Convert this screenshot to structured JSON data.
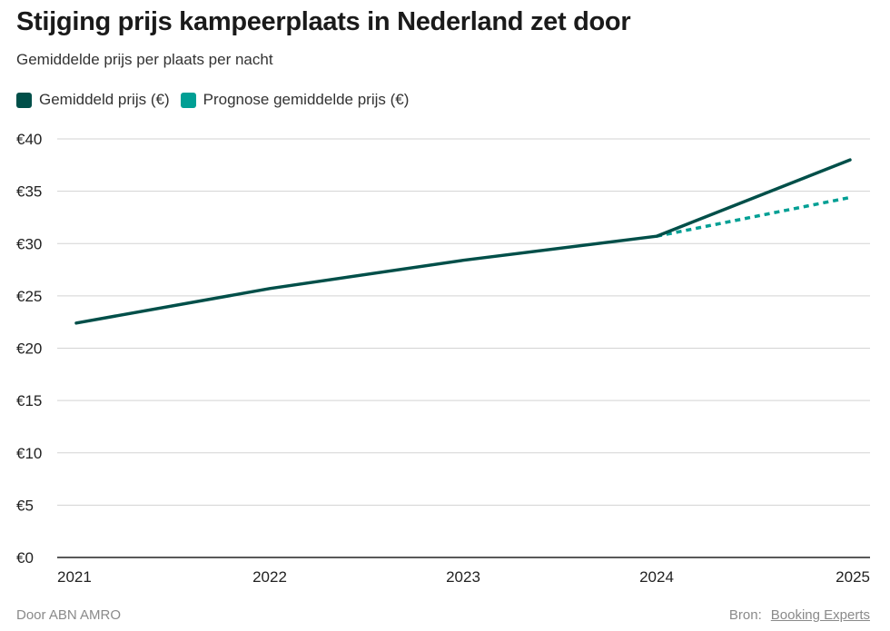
{
  "header": {
    "title": "Stijging prijs kampeerplaats in Nederland zet door",
    "subtitle": "Gemiddelde prijs per plaats per nacht"
  },
  "legend": [
    {
      "label": "Gemiddeld prijs (€)",
      "color": "#004f49"
    },
    {
      "label": "Prognose gemiddelde prijs (€)",
      "color": "#009f94"
    }
  ],
  "footer": {
    "left": "Door ABN AMRO",
    "source_label": "Bron:",
    "source_name": "Booking Experts"
  },
  "chart_data": {
    "type": "line",
    "x": [
      "2021",
      "2022",
      "2023",
      "2024",
      "2025"
    ],
    "series": [
      {
        "name": "Gemiddeld prijs (€)",
        "color": "#004f49",
        "style": "solid",
        "values": [
          22.4,
          25.7,
          28.4,
          30.7,
          38.0
        ]
      },
      {
        "name": "Prognose gemiddelde prijs (€)",
        "color": "#009f94",
        "style": "dotted",
        "values": [
          null,
          null,
          null,
          30.7,
          34.4
        ]
      }
    ],
    "ylim": [
      0,
      40
    ],
    "yticks": [
      0,
      5,
      10,
      15,
      20,
      25,
      30,
      35,
      40
    ],
    "ytick_labels": [
      "€0",
      "€5",
      "€10",
      "€15",
      "€20",
      "€25",
      "€30",
      "€35",
      "€40"
    ],
    "grid": true,
    "legend_position": "top-left"
  }
}
